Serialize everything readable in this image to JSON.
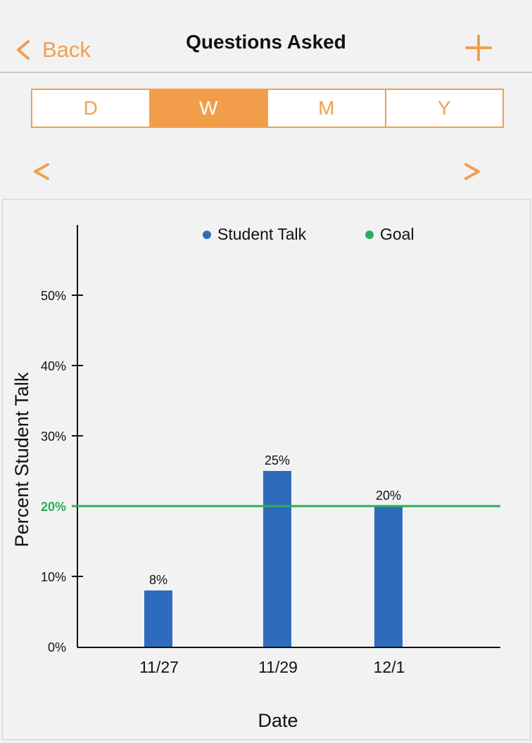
{
  "nav": {
    "back_label": "Back",
    "title": "Questions Asked"
  },
  "period_tabs": [
    "D",
    "W",
    "M",
    "Y"
  ],
  "selected_tab": "W",
  "colors": {
    "accent": "#f29d4a",
    "bar": "#2e6bbd",
    "goal": "#2eac5a"
  },
  "icons": {
    "back": "chevron-left-icon",
    "add": "plus-icon",
    "prev": "chevron-left-icon",
    "next": "chevron-right-icon"
  },
  "chart_data": {
    "type": "bar",
    "categories": [
      "11/27",
      "11/29",
      "12/1"
    ],
    "series": [
      {
        "name": "Student Talk",
        "values": [
          8,
          25,
          20
        ]
      }
    ],
    "data_labels": [
      "8%",
      "25%",
      "20%"
    ],
    "goal": {
      "name": "Goal",
      "value": 20,
      "label": "20%"
    },
    "xlabel": "Date",
    "ylabel": "Percent Student Talk",
    "ylim": [
      0,
      60
    ],
    "yticks": [
      {
        "value": 0,
        "label": "0%"
      },
      {
        "value": 10,
        "label": "10%"
      },
      {
        "value": 30,
        "label": "30%"
      },
      {
        "value": 40,
        "label": "40%"
      },
      {
        "value": 50,
        "label": "50%"
      }
    ],
    "legend": [
      "Student Talk",
      "Goal"
    ],
    "legend_position": "top",
    "grid": false
  }
}
